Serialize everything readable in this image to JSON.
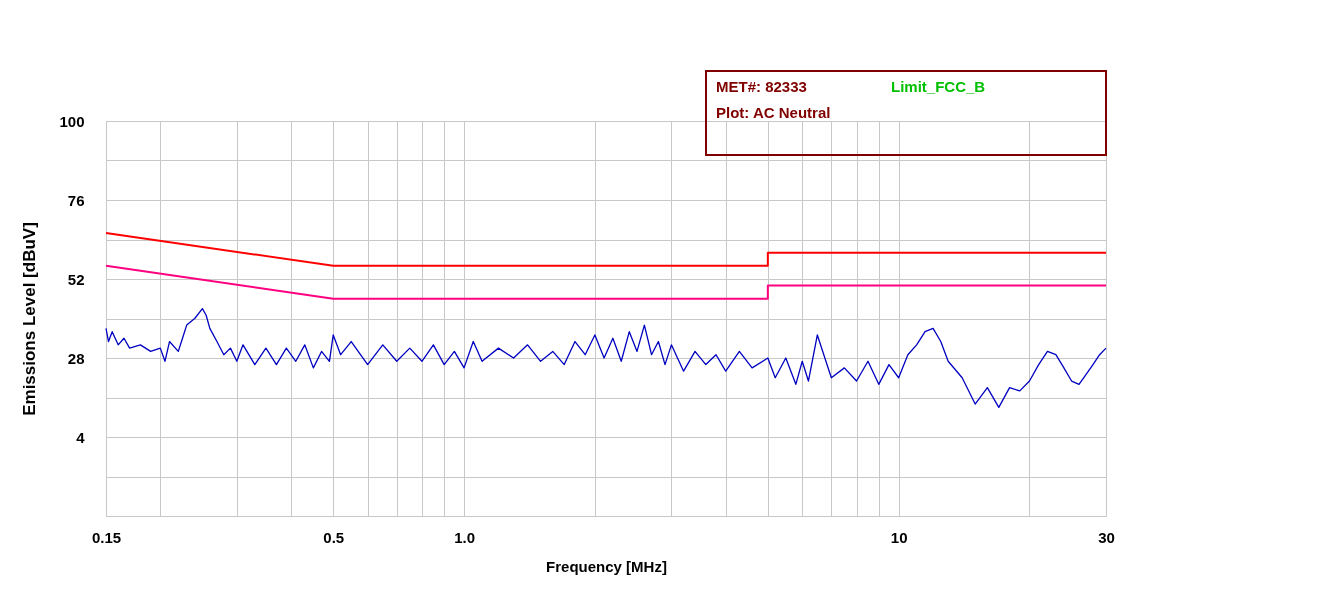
{
  "chart_data": {
    "type": "line",
    "xlabel": "Frequency [MHz]",
    "ylabel": "Emissions Level [dBuV]",
    "annotations": [
      "MET#: 82333",
      "Limit_FCC_B",
      "Plot: AC Neutral"
    ],
    "log": "x",
    "grid": true,
    "line_style": "solid",
    "marker": "none",
    "xlim": [
      0.15,
      30
    ],
    "ylim": [
      -20,
      100
    ],
    "xticks": [
      0.15,
      {
        "value": 0.2,
        "label": null
      },
      {
        "value": 0.3,
        "label": null
      },
      {
        "value": 0.4,
        "label": null
      },
      0.5,
      {
        "value": 0.6,
        "label": null
      },
      {
        "value": 0.7,
        "label": null
      },
      {
        "value": 0.8,
        "label": null
      },
      {
        "value": 0.9,
        "label": null
      },
      {
        "value": 1,
        "label": "1.0"
      },
      {
        "value": 2,
        "label": null
      },
      {
        "value": 3,
        "label": null
      },
      {
        "value": 4,
        "label": null
      },
      {
        "value": 5,
        "label": null
      },
      {
        "value": 6,
        "label": null
      },
      {
        "value": 7,
        "label": null
      },
      {
        "value": 8,
        "label": null
      },
      {
        "value": 9,
        "label": null
      },
      10,
      {
        "value": 20,
        "label": null
      },
      30
    ],
    "yticks": [
      {
        "value": -20,
        "label": null
      },
      {
        "value": -8,
        "label": null
      },
      4,
      {
        "value": 16,
        "label": null
      },
      28,
      {
        "value": 40,
        "label": null
      },
      52,
      {
        "value": 64,
        "label": null
      },
      76,
      {
        "value": 88,
        "label": null
      },
      100
    ],
    "series": [
      {
        "color": "#0000c0",
        "x": [
          0.15,
          0.152,
          0.155,
          0.16,
          0.165,
          0.17,
          0.18,
          0.19,
          0.2,
          0.205,
          0.21,
          0.22,
          0.225,
          0.23,
          0.24,
          0.25,
          0.255,
          0.26,
          0.27,
          0.28,
          0.29,
          0.3,
          0.31,
          0.33,
          0.35,
          0.37,
          0.39,
          0.41,
          0.43,
          0.45,
          0.47,
          0.49,
          0.5,
          0.52,
          0.55,
          0.6,
          0.65,
          0.7,
          0.75,
          0.8,
          0.85,
          0.9,
          0.95,
          1.0,
          1.05,
          1.1,
          1.2,
          1.3,
          1.4,
          1.5,
          1.6,
          1.7,
          1.8,
          1.9,
          2.0,
          2.1,
          2.2,
          2.3,
          2.4,
          2.5,
          2.6,
          2.7,
          2.8,
          2.9,
          3.0,
          3.2,
          3.4,
          3.6,
          3.8,
          4.0,
          4.3,
          4.6,
          5.0,
          5.2,
          5.5,
          5.8,
          6.0,
          6.2,
          6.5,
          7.0,
          7.5,
          8.0,
          8.5,
          9.0,
          9.5,
          10.0,
          10.5,
          11.0,
          11.5,
          12.0,
          12.5,
          13,
          14,
          15,
          16,
          17,
          18,
          19,
          20,
          21,
          22,
          23,
          24,
          25,
          26,
          27,
          28,
          29,
          30
        ],
        "values": [
          37,
          33,
          36,
          32,
          34,
          31,
          32,
          30,
          31,
          27,
          33,
          30,
          34,
          38,
          40,
          43,
          41,
          37,
          33,
          29,
          31,
          27,
          32,
          26,
          31,
          26,
          31,
          27,
          32,
          25,
          30,
          27,
          35,
          29,
          33,
          26,
          32,
          27,
          31,
          27,
          32,
          26,
          30,
          25,
          33,
          27,
          31,
          28,
          32,
          27,
          30,
          26,
          33,
          29,
          35,
          28,
          34,
          27,
          36,
          30,
          38,
          29,
          33,
          26,
          32,
          24,
          30,
          26,
          29,
          24,
          30,
          25,
          28,
          22,
          28,
          20,
          27,
          21,
          35,
          22,
          25,
          21,
          27,
          20,
          26,
          22,
          29,
          32,
          36,
          37,
          33,
          27,
          22,
          14,
          19,
          13,
          19,
          18,
          21,
          26,
          30,
          29,
          25,
          21,
          20,
          23,
          26,
          29,
          31
        ]
      },
      {
        "color": "#ff0000",
        "x": [
          0.15,
          0.5,
          5,
          5,
          30
        ],
        "values": [
          66,
          56,
          56,
          60,
          60
        ]
      },
      {
        "color": "#ff0080",
        "x": [
          0.15,
          0.5,
          5,
          5,
          30
        ],
        "values": [
          56,
          46,
          46,
          50,
          50
        ]
      }
    ]
  }
}
